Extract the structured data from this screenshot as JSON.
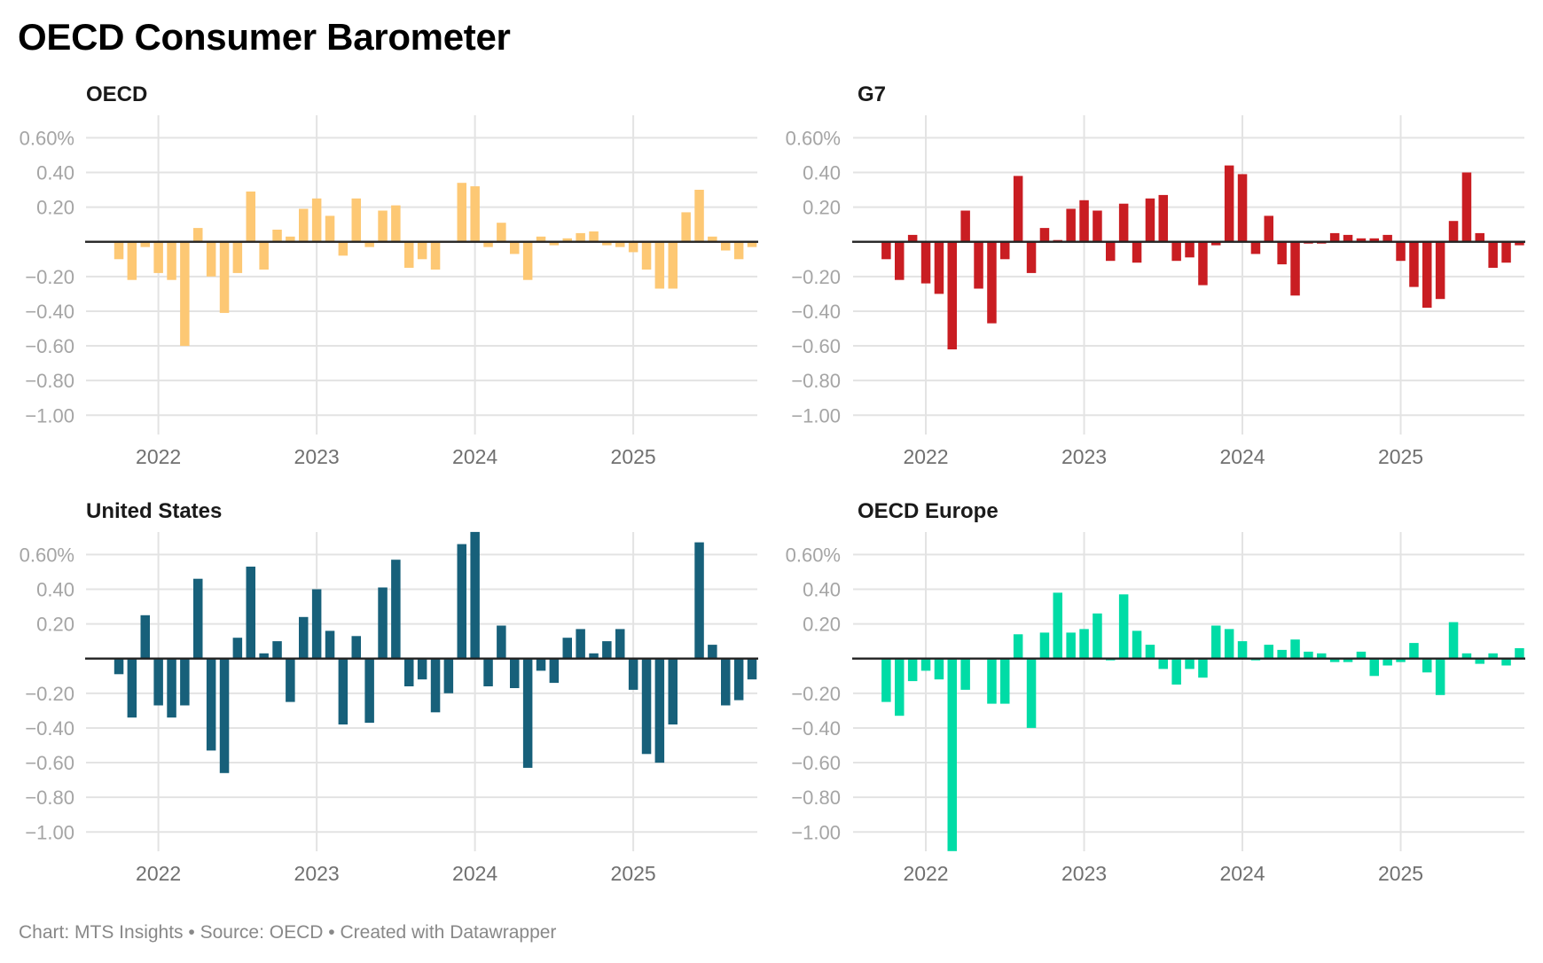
{
  "title": "OECD Consumer Barometer",
  "footer": "Chart: MTS Insights • Source: OECD • Created with Datawrapper",
  "chart_data": [
    {
      "type": "bar",
      "title": "OECD",
      "color": "#FDC874",
      "xlabel": "",
      "ylabel": "",
      "ylim": [
        -1.11,
        0.73
      ],
      "yticks": [
        0.6,
        0.4,
        0.2,
        -0.2,
        -0.4,
        -0.6,
        -0.8,
        -1.0
      ],
      "ytick_labels": [
        "0.60%",
        "0.40",
        "0.20",
        "−0.20",
        "−0.40",
        "−0.60",
        "−0.80",
        "−1.00"
      ],
      "xticks": [
        "2022",
        "2023",
        "2024",
        "2025"
      ],
      "categories": [
        "2021-10",
        "2021-11",
        "2021-12",
        "2022-01",
        "2022-02",
        "2022-03",
        "2022-04",
        "2022-05",
        "2022-06",
        "2022-07",
        "2022-08",
        "2022-09",
        "2022-10",
        "2022-11",
        "2022-12",
        "2023-01",
        "2023-02",
        "2023-03",
        "2023-04",
        "2023-05",
        "2023-06",
        "2023-07",
        "2023-08",
        "2023-09",
        "2023-10",
        "2023-11",
        "2023-12",
        "2024-01",
        "2024-02",
        "2024-03",
        "2024-04",
        "2024-05",
        "2024-06",
        "2024-07",
        "2024-08",
        "2024-09",
        "2024-10",
        "2024-11",
        "2024-12",
        "2025-01",
        "2025-02",
        "2025-03",
        "2025-04",
        "2025-05",
        "2025-06",
        "2025-07",
        "2025-08",
        "2025-09",
        "2025-10"
      ],
      "values": [
        -0.1,
        -0.22,
        -0.03,
        -0.18,
        -0.22,
        -0.6,
        0.08,
        -0.2,
        -0.41,
        -0.18,
        0.29,
        -0.16,
        0.07,
        0.03,
        0.19,
        0.25,
        0.15,
        -0.08,
        0.25,
        -0.03,
        0.18,
        0.21,
        -0.15,
        -0.1,
        -0.16,
        0.0,
        0.34,
        0.32,
        -0.03,
        0.11,
        -0.07,
        -0.22,
        0.03,
        -0.02,
        0.02,
        0.05,
        0.06,
        -0.02,
        -0.03,
        -0.06,
        -0.16,
        -0.27,
        -0.27,
        0.17,
        0.3,
        0.03,
        -0.05,
        -0.1,
        -0.03
      ]
    },
    {
      "type": "bar",
      "title": "G7",
      "color": "#C91D22",
      "xlabel": "",
      "ylabel": "",
      "ylim": [
        -1.11,
        0.73
      ],
      "yticks": [
        0.6,
        0.4,
        0.2,
        -0.2,
        -0.4,
        -0.6,
        -0.8,
        -1.0
      ],
      "ytick_labels": [
        "0.60%",
        "0.40",
        "0.20",
        "−0.20",
        "−0.40",
        "−0.60",
        "−0.80",
        "−1.00"
      ],
      "xticks": [
        "2022",
        "2023",
        "2024",
        "2025"
      ],
      "categories": [
        "2021-10",
        "2021-11",
        "2021-12",
        "2022-01",
        "2022-02",
        "2022-03",
        "2022-04",
        "2022-05",
        "2022-06",
        "2022-07",
        "2022-08",
        "2022-09",
        "2022-10",
        "2022-11",
        "2022-12",
        "2023-01",
        "2023-02",
        "2023-03",
        "2023-04",
        "2023-05",
        "2023-06",
        "2023-07",
        "2023-08",
        "2023-09",
        "2023-10",
        "2023-11",
        "2023-12",
        "2024-01",
        "2024-02",
        "2024-03",
        "2024-04",
        "2024-05",
        "2024-06",
        "2024-07",
        "2024-08",
        "2024-09",
        "2024-10",
        "2024-11",
        "2024-12",
        "2025-01",
        "2025-02",
        "2025-03",
        "2025-04",
        "2025-05",
        "2025-06",
        "2025-07",
        "2025-08",
        "2025-09",
        "2025-10"
      ],
      "values": [
        -0.1,
        -0.22,
        0.04,
        -0.24,
        -0.3,
        -0.62,
        0.18,
        -0.27,
        -0.47,
        -0.1,
        0.38,
        -0.18,
        0.08,
        0.01,
        0.19,
        0.24,
        0.18,
        -0.11,
        0.22,
        -0.12,
        0.25,
        0.27,
        -0.11,
        -0.09,
        -0.25,
        -0.02,
        0.44,
        0.39,
        -0.07,
        0.15,
        -0.13,
        -0.31,
        -0.01,
        -0.01,
        0.05,
        0.04,
        0.02,
        0.02,
        0.04,
        -0.11,
        -0.26,
        -0.38,
        -0.33,
        0.12,
        0.4,
        0.05,
        -0.15,
        -0.12,
        -0.02
      ]
    },
    {
      "type": "bar",
      "title": "United States",
      "color": "#17607A",
      "xlabel": "",
      "ylabel": "",
      "ylim": [
        -1.11,
        0.73
      ],
      "yticks": [
        0.6,
        0.4,
        0.2,
        -0.2,
        -0.4,
        -0.6,
        -0.8,
        -1.0
      ],
      "ytick_labels": [
        "0.60%",
        "0.40",
        "0.20",
        "−0.20",
        "−0.40",
        "−0.60",
        "−0.80",
        "−1.00"
      ],
      "xticks": [
        "2022",
        "2023",
        "2024",
        "2025"
      ],
      "categories": [
        "2021-10",
        "2021-11",
        "2021-12",
        "2022-01",
        "2022-02",
        "2022-03",
        "2022-04",
        "2022-05",
        "2022-06",
        "2022-07",
        "2022-08",
        "2022-09",
        "2022-10",
        "2022-11",
        "2022-12",
        "2023-01",
        "2023-02",
        "2023-03",
        "2023-04",
        "2023-05",
        "2023-06",
        "2023-07",
        "2023-08",
        "2023-09",
        "2023-10",
        "2023-11",
        "2023-12",
        "2024-01",
        "2024-02",
        "2024-03",
        "2024-04",
        "2024-05",
        "2024-06",
        "2024-07",
        "2024-08",
        "2024-09",
        "2024-10",
        "2024-11",
        "2024-12",
        "2025-01",
        "2025-02",
        "2025-03",
        "2025-04",
        "2025-05",
        "2025-06",
        "2025-07",
        "2025-08",
        "2025-09",
        "2025-10"
      ],
      "values": [
        -0.09,
        -0.34,
        0.25,
        -0.27,
        -0.34,
        -0.27,
        0.46,
        -0.53,
        -0.66,
        0.12,
        0.53,
        0.03,
        0.1,
        -0.25,
        0.24,
        0.4,
        0.16,
        -0.38,
        0.13,
        -0.37,
        0.41,
        0.57,
        -0.16,
        -0.12,
        -0.31,
        -0.2,
        0.66,
        0.73,
        -0.16,
        0.19,
        -0.17,
        -0.63,
        -0.07,
        -0.14,
        0.12,
        0.17,
        0.03,
        0.1,
        0.17,
        -0.18,
        -0.55,
        -0.6,
        -0.38,
        0.0,
        0.67,
        0.08,
        -0.27,
        -0.24,
        -0.12
      ]
    },
    {
      "type": "bar",
      "title": "OECD Europe",
      "color": "#00DCA6",
      "xlabel": "",
      "ylabel": "",
      "ylim": [
        -1.11,
        0.73
      ],
      "yticks": [
        0.6,
        0.4,
        0.2,
        -0.2,
        -0.4,
        -0.6,
        -0.8,
        -1.0
      ],
      "ytick_labels": [
        "0.60%",
        "0.40",
        "0.20",
        "−0.20",
        "−0.40",
        "−0.60",
        "−0.80",
        "−1.00"
      ],
      "xticks": [
        "2022",
        "2023",
        "2024",
        "2025"
      ],
      "categories": [
        "2021-10",
        "2021-11",
        "2021-12",
        "2022-01",
        "2022-02",
        "2022-03",
        "2022-04",
        "2022-05",
        "2022-06",
        "2022-07",
        "2022-08",
        "2022-09",
        "2022-10",
        "2022-11",
        "2022-12",
        "2023-01",
        "2023-02",
        "2023-03",
        "2023-04",
        "2023-05",
        "2023-06",
        "2023-07",
        "2023-08",
        "2023-09",
        "2023-10",
        "2023-11",
        "2023-12",
        "2024-01",
        "2024-02",
        "2024-03",
        "2024-04",
        "2024-05",
        "2024-06",
        "2024-07",
        "2024-08",
        "2024-09",
        "2024-10",
        "2024-11",
        "2024-12",
        "2025-01",
        "2025-02",
        "2025-03",
        "2025-04",
        "2025-05",
        "2025-06",
        "2025-07",
        "2025-08",
        "2025-09",
        "2025-10"
      ],
      "values": [
        -0.25,
        -0.33,
        -0.13,
        -0.07,
        -0.12,
        -1.11,
        -0.18,
        0.0,
        -0.26,
        -0.26,
        0.14,
        -0.4,
        0.15,
        0.38,
        0.15,
        0.17,
        0.26,
        -0.01,
        0.37,
        0.16,
        0.08,
        -0.06,
        -0.15,
        -0.06,
        -0.11,
        0.19,
        0.17,
        0.1,
        -0.01,
        0.08,
        0.05,
        0.11,
        0.04,
        0.03,
        -0.02,
        -0.02,
        0.04,
        -0.1,
        -0.04,
        -0.02,
        0.09,
        -0.08,
        -0.21,
        0.21,
        0.03,
        -0.03,
        0.03,
        -0.04,
        0.06
      ]
    }
  ]
}
